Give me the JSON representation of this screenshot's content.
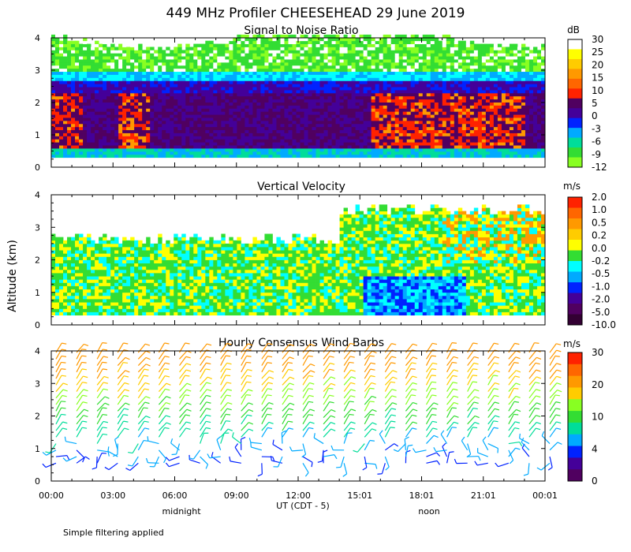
{
  "title": "449 MHz Profiler CHEESEHEAD 29 June 2019",
  "footer_note": "Simple filtering applied",
  "colors": {
    "white": "#ffffff",
    "yellow": "#ffff00",
    "gold": "#ffcc00",
    "orange": "#ff9900",
    "dark_orange": "#ff6600",
    "red": "#ff2200",
    "dark_purple": "#500060",
    "purple": "#440099",
    "blue": "#0022ff",
    "sky": "#00aaff",
    "cyan": "#00ffff",
    "teal": "#00dd99",
    "green": "#33dd33",
    "lime": "#88ff22",
    "darkest": "#330033"
  },
  "chart_data": [
    {
      "type": "heatmap",
      "title": "Signal to Noise Ratio",
      "ylabel": "Altitude (km)",
      "ylim": [
        0,
        4
      ],
      "yticks": [
        "0",
        "1",
        "2",
        "3",
        "4"
      ],
      "colorbar": {
        "unit": "dB",
        "ticks": [
          "30",
          "25",
          "20",
          "15",
          "10",
          "5",
          "0",
          "-3",
          "-6",
          "-9",
          "-12"
        ]
      }
    },
    {
      "type": "heatmap",
      "title": "Vertical Velocity",
      "ylabel": "Altitude (km)",
      "ylim": [
        0,
        4
      ],
      "yticks": [
        "0",
        "1",
        "2",
        "3",
        "4"
      ],
      "colorbar": {
        "unit": "m/s",
        "ticks": [
          "2.0",
          "1.0",
          "0.5",
          "0.2",
          "0.0",
          "-0.2",
          "-0.5",
          "-1.0",
          "-2.0",
          "-5.0",
          "-10.0"
        ]
      }
    },
    {
      "type": "scatter",
      "title": "Hourly Consensus Wind Barbs",
      "ylim": [
        0,
        4
      ],
      "yticks": [
        "0",
        "1",
        "2",
        "3",
        "4"
      ],
      "colorbar": {
        "unit": "m/s",
        "ticks": [
          "30",
          "20",
          "10",
          "4",
          "0"
        ]
      },
      "xlabel": "UT  (CDT - 5)",
      "xticks": [
        "00:00",
        "03:00",
        "06:00",
        "09:00",
        "12:00",
        "15:01",
        "18:01",
        "21:01",
        "00:01"
      ],
      "local_labels": [
        "midnight",
        "noon"
      ]
    }
  ],
  "ylabel": "Altitude (km)"
}
